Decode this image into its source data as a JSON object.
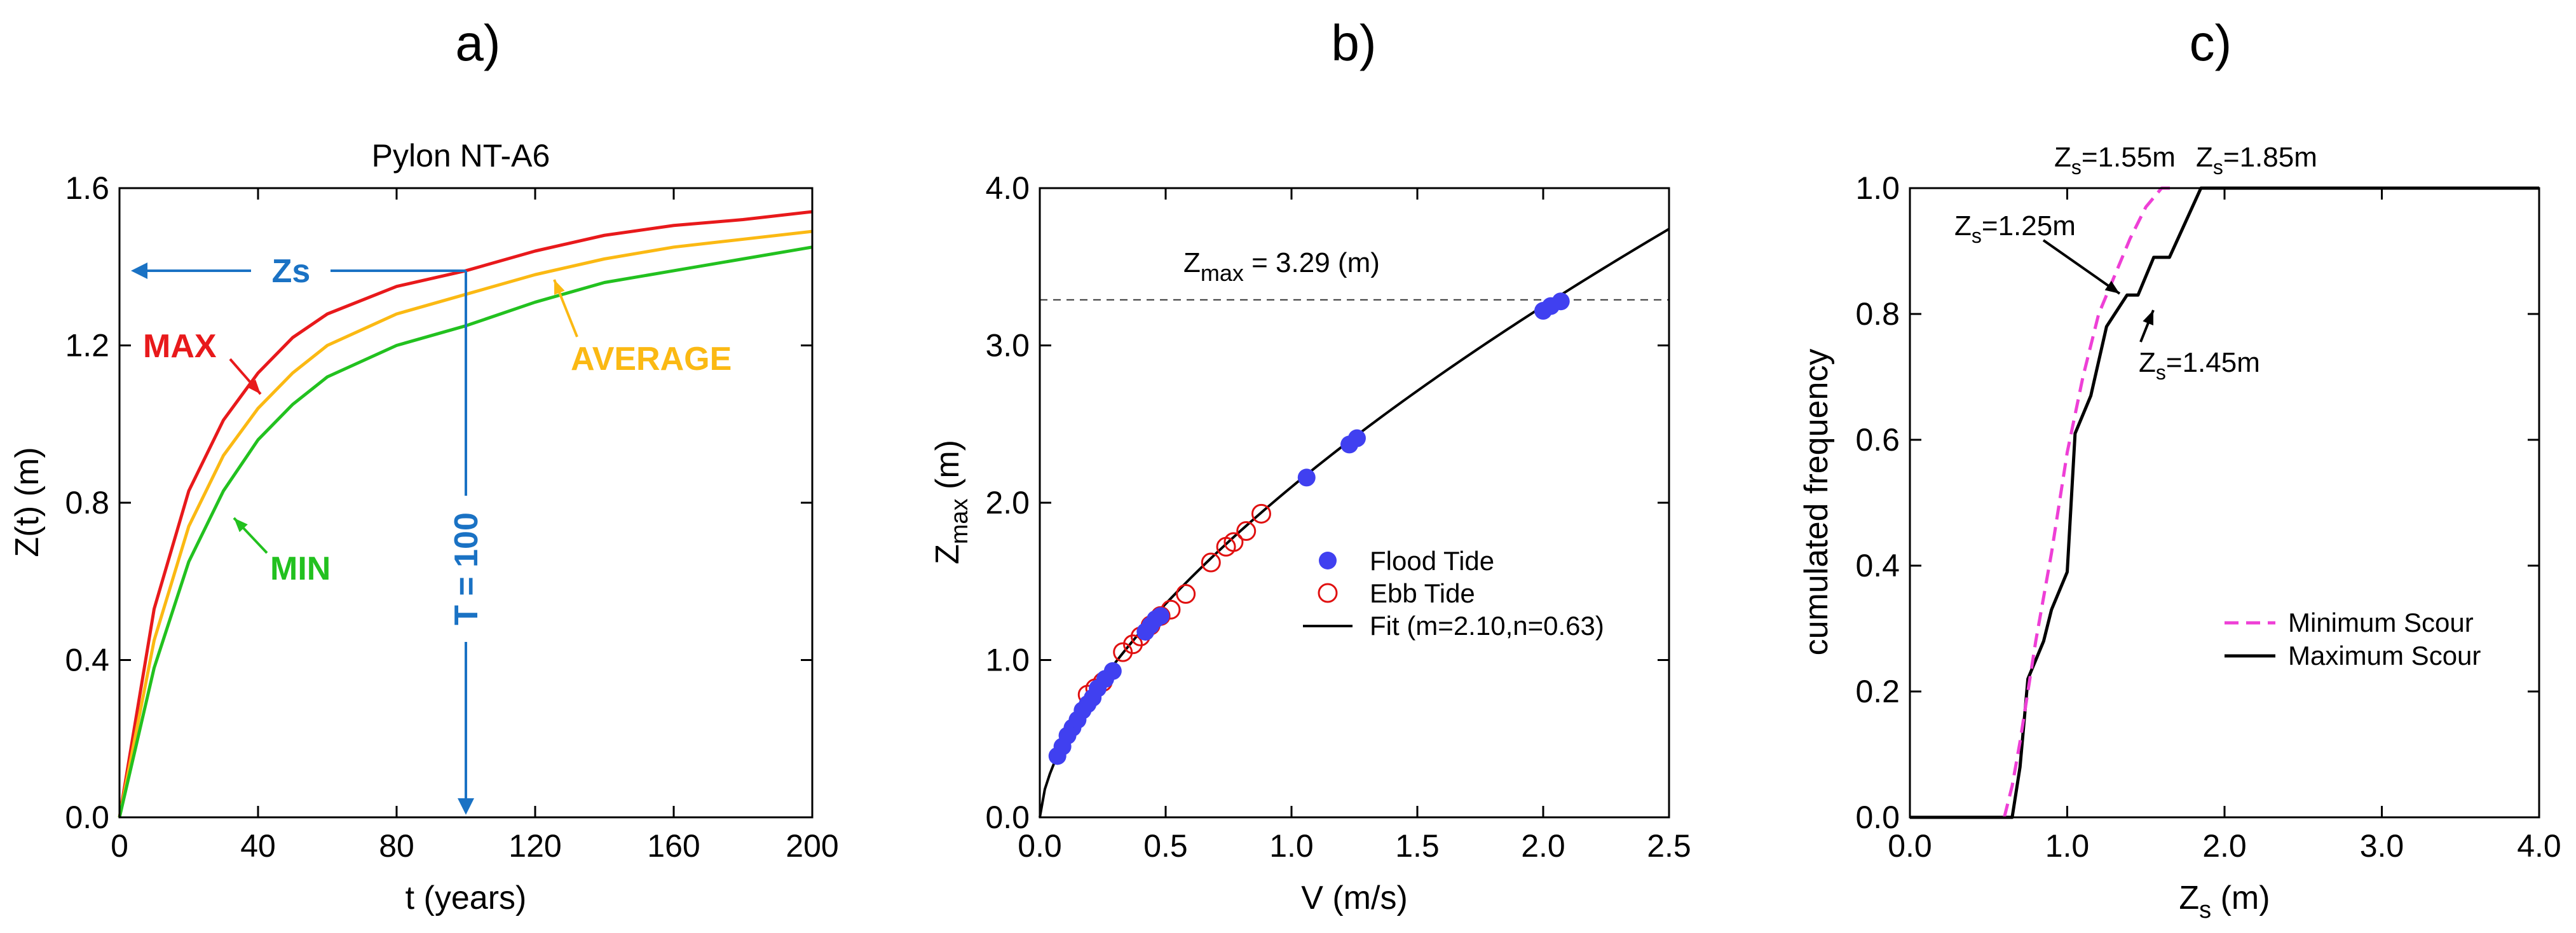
{
  "colors": {
    "max": "#e8191b",
    "average": "#fbb913",
    "min": "#22c11f",
    "arrow_blue": "#1a72c4",
    "flood": "#4040f0",
    "ebb": "#e01010",
    "min_scour": "#ee3fd6",
    "max_scour": "#000000"
  },
  "chart_data": [
    {
      "panel": "a)",
      "type": "line",
      "title": "Pylon NT-A6",
      "xlabel": "t (years)",
      "ylabel": "Z(t) (m)",
      "xlim": [
        0,
        200
      ],
      "ylim": [
        0,
        1.6
      ],
      "xticks": [
        0,
        40,
        80,
        120,
        160,
        200
      ],
      "xtick_labels": [
        "0",
        "40",
        "80",
        "120",
        "160",
        "200"
      ],
      "yticks": [
        0,
        0.4,
        0.8,
        1.2,
        1.6
      ],
      "ytick_labels": [
        "0.0",
        "0.4",
        "0.8",
        "1.2",
        "1.6"
      ],
      "series": [
        {
          "name": "MAX",
          "x": [
            0,
            10,
            20,
            30,
            40,
            50,
            60,
            80,
            100,
            120,
            140,
            160,
            180,
            200
          ],
          "values": [
            0,
            0.53,
            0.83,
            1.01,
            1.13,
            1.22,
            1.28,
            1.35,
            1.39,
            1.44,
            1.48,
            1.505,
            1.52,
            1.54
          ]
        },
        {
          "name": "AVERAGE",
          "x": [
            0,
            10,
            20,
            30,
            40,
            50,
            60,
            80,
            100,
            120,
            140,
            160,
            180,
            200
          ],
          "values": [
            0,
            0.45,
            0.74,
            0.92,
            1.04,
            1.13,
            1.2,
            1.28,
            1.33,
            1.38,
            1.42,
            1.45,
            1.47,
            1.49
          ]
        },
        {
          "name": "MIN",
          "x": [
            0,
            10,
            20,
            30,
            40,
            50,
            60,
            80,
            100,
            120,
            140,
            160,
            180,
            200
          ],
          "values": [
            0,
            0.38,
            0.65,
            0.83,
            0.96,
            1.05,
            1.12,
            1.2,
            1.25,
            1.31,
            1.36,
            1.39,
            1.42,
            1.45
          ]
        }
      ],
      "annotations": {
        "max": "MAX",
        "average": "AVERAGE",
        "min": "MIN",
        "zs": "Zs",
        "period": "T = 100"
      },
      "markers": {
        "zs_level": 1.39,
        "period_x": 100
      }
    },
    {
      "panel": "b)",
      "type": "scatter",
      "xlabel": "V (m/s)",
      "ylabel_main": "Z",
      "ylabel_sub": "max",
      "ylabel_tail": " (m)",
      "xlim": [
        0,
        2.5
      ],
      "ylim": [
        0,
        4.0
      ],
      "xticks": [
        0,
        0.5,
        1.0,
        1.5,
        2.0,
        2.5
      ],
      "xtick_labels": [
        "0.0",
        "0.5",
        "1.0",
        "1.5",
        "2.0",
        "2.5"
      ],
      "yticks": [
        0,
        1,
        2,
        3,
        4
      ],
      "ytick_labels": [
        "0.0",
        "1.0",
        "2.0",
        "3.0",
        "4.0"
      ],
      "zmax_line": 3.29,
      "zmax_label": {
        "main": "Z",
        "sub": "max",
        "tail": " = 3.29 (m)"
      },
      "fit": {
        "name": "Fit (m=2.10,n=0.63)",
        "m": 2.1,
        "n": 0.63
      },
      "series": [
        {
          "name": "Flood Tide",
          "x": [
            0.07,
            0.09,
            0.11,
            0.13,
            0.15,
            0.17,
            0.19,
            0.21,
            0.23,
            0.26,
            0.29,
            0.42,
            0.44,
            0.46,
            0.48,
            1.06,
            1.23,
            1.26,
            2.0,
            2.03,
            2.07
          ],
          "values": [
            0.39,
            0.45,
            0.52,
            0.57,
            0.62,
            0.68,
            0.72,
            0.76,
            0.82,
            0.88,
            0.93,
            1.18,
            1.22,
            1.26,
            1.28,
            2.16,
            2.37,
            2.41,
            3.22,
            3.25,
            3.28
          ]
        },
        {
          "name": "Ebb Tide",
          "x": [
            0.19,
            0.22,
            0.25,
            0.33,
            0.37,
            0.4,
            0.44,
            0.48,
            0.52,
            0.58,
            0.68,
            0.74,
            0.77,
            0.82,
            0.88
          ],
          "values": [
            0.78,
            0.82,
            0.86,
            1.05,
            1.1,
            1.15,
            1.22,
            1.28,
            1.32,
            1.42,
            1.62,
            1.72,
            1.75,
            1.82,
            1.93
          ]
        }
      ]
    },
    {
      "panel": "c)",
      "type": "line",
      "xlabel_main": "Z",
      "xlabel_sub": "s",
      "xlabel_tail": " (m)",
      "ylabel": "cumulated frequency",
      "xlim": [
        0,
        4.0
      ],
      "ylim": [
        0,
        1.0
      ],
      "xticks": [
        0,
        1,
        2,
        3,
        4
      ],
      "xtick_labels": [
        "0.0",
        "1.0",
        "2.0",
        "3.0",
        "4.0"
      ],
      "yticks": [
        0,
        0.2,
        0.4,
        0.6,
        0.8,
        1.0
      ],
      "ytick_labels": [
        "0.0",
        "0.2",
        "0.4",
        "0.6",
        "0.8",
        "1.0"
      ],
      "series": [
        {
          "name": "Minimum Scour",
          "x": [
            0.6,
            0.65,
            0.7,
            0.75,
            0.8,
            0.85,
            0.9,
            0.95,
            1.0,
            1.1,
            1.2,
            1.3,
            1.4,
            1.5,
            1.6,
            1.7
          ],
          "values": [
            0.0,
            0.05,
            0.12,
            0.2,
            0.28,
            0.35,
            0.42,
            0.5,
            0.58,
            0.7,
            0.8,
            0.86,
            0.92,
            0.97,
            1.0,
            1.0
          ]
        },
        {
          "name": "Maximum Scour",
          "x": [
            0.0,
            0.65,
            0.7,
            0.75,
            0.85,
            0.9,
            1.0,
            1.05,
            1.15,
            1.25,
            1.38,
            1.45,
            1.55,
            1.65,
            1.85,
            4.0
          ],
          "values": [
            0.0,
            0.0,
            0.08,
            0.22,
            0.28,
            0.33,
            0.39,
            0.61,
            0.67,
            0.78,
            0.83,
            0.83,
            0.89,
            0.89,
            1.0,
            1.0
          ]
        }
      ],
      "annotations": [
        {
          "main": "Z",
          "sub": "s",
          "tail": "=1.55m"
        },
        {
          "main": "Z",
          "sub": "s",
          "tail": "=1.85m"
        },
        {
          "main": "Z",
          "sub": "s",
          "tail": "=1.25m"
        },
        {
          "main": "Z",
          "sub": "s",
          "tail": "=1.45m"
        }
      ]
    }
  ]
}
